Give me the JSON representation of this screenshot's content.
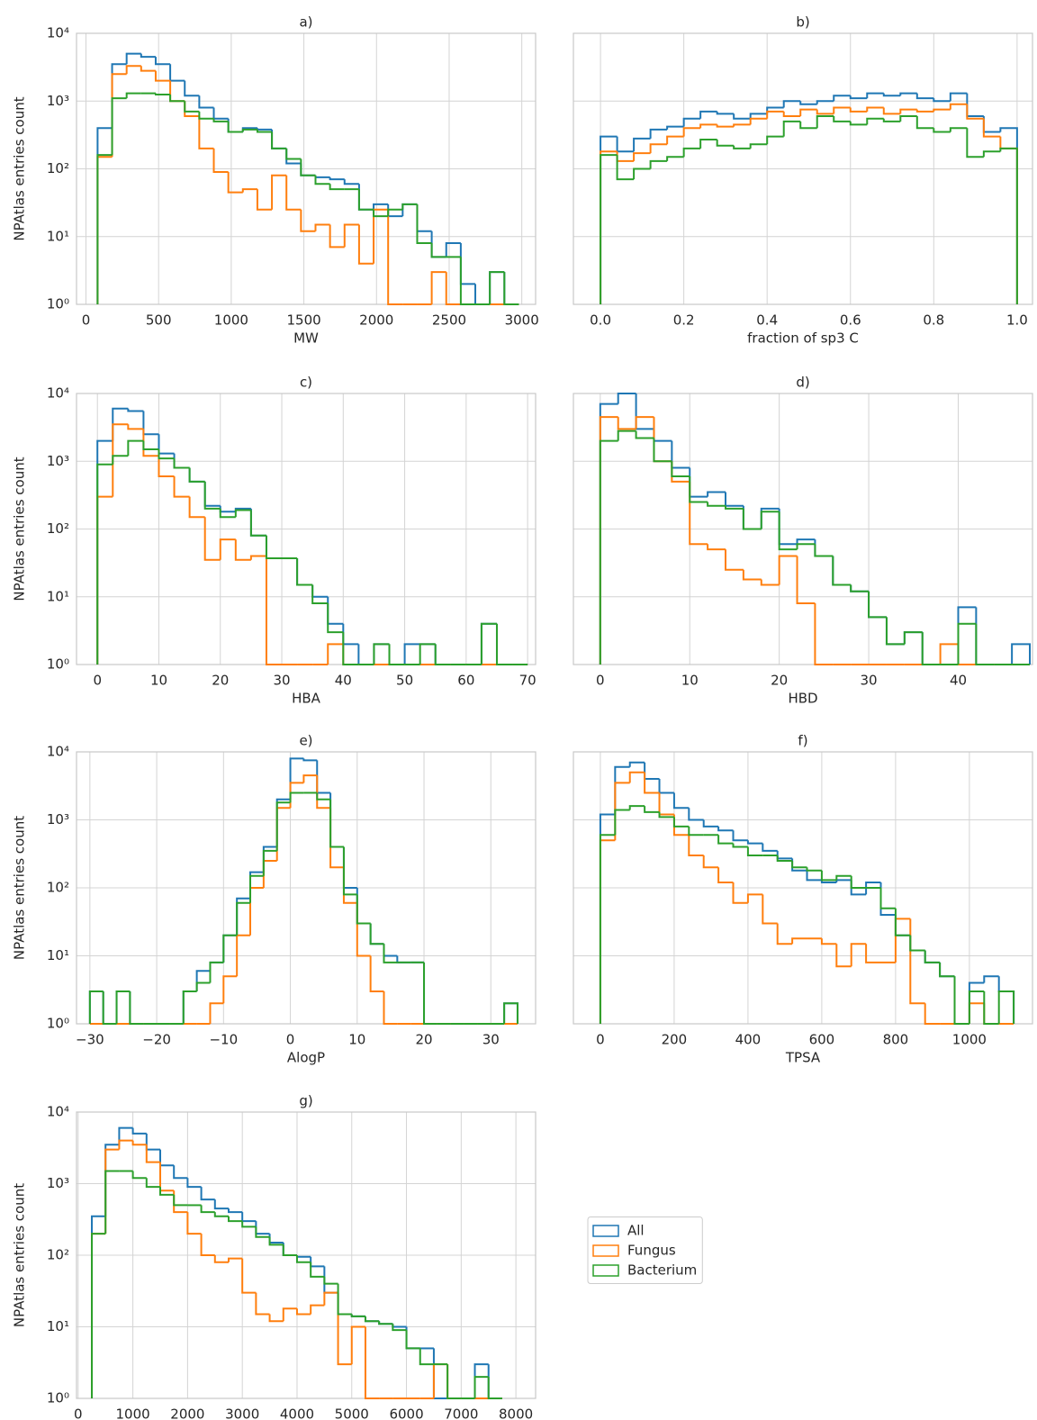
{
  "chart_data": [
    {
      "type": "histogram",
      "title": "a)",
      "xlabel": "MW",
      "ylabel": "NPAtlas entries count",
      "log_y": true,
      "grid": true,
      "xlim": [
        -65,
        3095
      ],
      "xticks": [
        0,
        500,
        1000,
        1500,
        2000,
        2500,
        3000
      ],
      "ylim": [
        1,
        10000
      ],
      "yticks": [
        {
          "value": 1,
          "label": "10⁰"
        },
        {
          "value": 10,
          "label": "10¹"
        },
        {
          "value": 100,
          "label": "10²"
        },
        {
          "value": 1000,
          "label": "10³"
        },
        {
          "value": 10000,
          "label": "10⁴"
        }
      ],
      "bins": [
        80,
        180,
        280,
        380,
        480,
        580,
        680,
        780,
        880,
        980,
        1080,
        1180,
        1280,
        1380,
        1480,
        1580,
        1680,
        1780,
        1880,
        1980,
        2080,
        2180,
        2280,
        2380,
        2480,
        2580,
        2680,
        2780,
        2880,
        2980
      ],
      "series": [
        {
          "color": "#1f77b4",
          "values": [
            400,
            3500,
            5000,
            4500,
            3500,
            2000,
            1200,
            800,
            550,
            350,
            400,
            380,
            200,
            120,
            80,
            75,
            70,
            60,
            25,
            30,
            20,
            30,
            12,
            5,
            8,
            2,
            0,
            3,
            0
          ]
        },
        {
          "color": "#ff7f0e",
          "values": [
            150,
            2500,
            3300,
            2800,
            2000,
            1000,
            600,
            200,
            90,
            45,
            50,
            25,
            80,
            25,
            12,
            15,
            7,
            15,
            4,
            25,
            1,
            0,
            0,
            3,
            1,
            0,
            0,
            0,
            0
          ]
        },
        {
          "color": "#2ca02c",
          "values": [
            160,
            1100,
            1300,
            1300,
            1250,
            1000,
            700,
            550,
            500,
            350,
            380,
            350,
            200,
            140,
            80,
            60,
            50,
            50,
            25,
            20,
            25,
            30,
            8,
            5,
            5,
            1,
            0,
            3,
            0
          ]
        }
      ]
    },
    {
      "type": "histogram",
      "title": "b)",
      "xlabel": "fraction of sp3 C",
      "log_y": true,
      "grid": true,
      "xlim": [
        -0.065,
        1.037
      ],
      "xticks": [
        {
          "value": 0,
          "label": "0.0"
        },
        0.2,
        0.4,
        0.6,
        0.8,
        {
          "value": 1,
          "label": "1.0"
        }
      ],
      "ylim": [
        1,
        10000
      ],
      "yticks": [
        1,
        10,
        100,
        1000,
        10000
      ],
      "bins": [
        0,
        0.04,
        0.08,
        0.12,
        0.16,
        0.2,
        0.24,
        0.28,
        0.32,
        0.36,
        0.4,
        0.44,
        0.48,
        0.52,
        0.56,
        0.6,
        0.64,
        0.68,
        0.72,
        0.76,
        0.8,
        0.84,
        0.88,
        0.92,
        0.96,
        1
      ],
      "series": [
        {
          "color": "#1f77b4",
          "values": [
            300,
            180,
            280,
            380,
            420,
            550,
            700,
            650,
            550,
            650,
            800,
            1000,
            900,
            1000,
            1200,
            1100,
            1300,
            1200,
            1300,
            1100,
            1000,
            1300,
            600,
            350,
            400
          ]
        },
        {
          "color": "#ff7f0e",
          "values": [
            180,
            130,
            170,
            230,
            300,
            400,
            450,
            420,
            450,
            550,
            700,
            600,
            750,
            650,
            800,
            700,
            800,
            650,
            750,
            700,
            750,
            900,
            550,
            300,
            200
          ]
        },
        {
          "color": "#2ca02c",
          "values": [
            160,
            70,
            100,
            130,
            150,
            200,
            270,
            220,
            200,
            230,
            300,
            500,
            400,
            600,
            500,
            450,
            550,
            500,
            600,
            400,
            350,
            400,
            150,
            180,
            200
          ]
        }
      ]
    },
    {
      "type": "histogram",
      "title": "c)",
      "xlabel": "HBA",
      "ylabel": "NPAtlas entries count",
      "log_y": true,
      "grid": true,
      "xlim": [
        -3.4,
        71.3
      ],
      "xticks": [
        0,
        10,
        20,
        30,
        40,
        50,
        60,
        70
      ],
      "ylim": [
        1,
        10000
      ],
      "yticks": [
        {
          "value": 1,
          "label": "10⁰"
        },
        {
          "value": 10,
          "label": "10¹"
        },
        {
          "value": 100,
          "label": "10²"
        },
        {
          "value": 1000,
          "label": "10³"
        },
        {
          "value": 10000,
          "label": "10⁴"
        }
      ],
      "bins": [
        0,
        2.5,
        5,
        7.5,
        10,
        12.5,
        15,
        17.5,
        20,
        22.5,
        25,
        27.5,
        30,
        32.5,
        35,
        37.5,
        40,
        42.5,
        45,
        47.5,
        50,
        52.5,
        55,
        57.5,
        60,
        62.5,
        65,
        67.5,
        70
      ],
      "series": [
        {
          "color": "#1f77b4",
          "values": [
            2000,
            6000,
            5500,
            2500,
            1300,
            800,
            500,
            220,
            180,
            200,
            80,
            37,
            37,
            15,
            10,
            4,
            2,
            0,
            2,
            0,
            2,
            2,
            0,
            0,
            0,
            4,
            0,
            0
          ]
        },
        {
          "color": "#ff7f0e",
          "values": [
            300,
            3500,
            3000,
            1200,
            600,
            300,
            150,
            35,
            70,
            35,
            40,
            0,
            0,
            0,
            0,
            2,
            0,
            0,
            0,
            0,
            0,
            0,
            0,
            0,
            0,
            0,
            0,
            0
          ]
        },
        {
          "color": "#2ca02c",
          "values": [
            900,
            1200,
            2000,
            1500,
            1100,
            800,
            500,
            200,
            150,
            190,
            80,
            37,
            37,
            15,
            8,
            3,
            1,
            0,
            2,
            0,
            0,
            2,
            0,
            0,
            0,
            4,
            0,
            0
          ]
        }
      ]
    },
    {
      "type": "histogram",
      "title": "d)",
      "xlabel": "HBD",
      "log_y": true,
      "grid": true,
      "xlim": [
        -3,
        48.3
      ],
      "xticks": [
        0,
        10,
        20,
        30,
        40
      ],
      "ylim": [
        1,
        10000
      ],
      "yticks": [
        1,
        10,
        100,
        1000,
        10000
      ],
      "bins": [
        0,
        2,
        4,
        6,
        8,
        10,
        12,
        14,
        16,
        18,
        20,
        22,
        24,
        26,
        28,
        30,
        32,
        34,
        36,
        38,
        40,
        42,
        44,
        46,
        48
      ],
      "series": [
        {
          "color": "#1f77b4",
          "values": [
            7000,
            10000,
            3000,
            2000,
            800,
            300,
            350,
            220,
            100,
            200,
            60,
            70,
            40,
            15,
            12,
            5,
            2,
            3,
            1,
            1,
            7,
            0,
            0,
            2
          ]
        },
        {
          "color": "#ff7f0e",
          "values": [
            4500,
            3000,
            4500,
            1000,
            500,
            60,
            50,
            25,
            18,
            15,
            40,
            8,
            1,
            0,
            0,
            0,
            0,
            0,
            0,
            2,
            1,
            0,
            0,
            0
          ]
        },
        {
          "color": "#2ca02c",
          "values": [
            2000,
            2800,
            2200,
            1000,
            600,
            250,
            220,
            200,
            100,
            180,
            50,
            60,
            40,
            15,
            12,
            5,
            2,
            3,
            1,
            1,
            4,
            0,
            0,
            0
          ]
        }
      ]
    },
    {
      "type": "histogram",
      "title": "e)",
      "xlabel": "AlogP",
      "ylabel": "NPAtlas entries count",
      "log_y": true,
      "grid": true,
      "xlim": [
        -32,
        36.7
      ],
      "xticks": [
        {
          "value": -30,
          "label": "−30"
        },
        {
          "value": -20,
          "label": "−20"
        },
        {
          "value": -10,
          "label": "−10"
        },
        0,
        10,
        20,
        30
      ],
      "ylim": [
        1,
        10000
      ],
      "yticks": [
        {
          "value": 1,
          "label": "10⁰"
        },
        {
          "value": 10,
          "label": "10¹"
        },
        {
          "value": 100,
          "label": "10²"
        },
        {
          "value": 1000,
          "label": "10³"
        },
        {
          "value": 10000,
          "label": "10⁴"
        }
      ],
      "bins": [
        -30,
        -28,
        -26,
        -24,
        -22,
        -20,
        -18,
        -16,
        -14,
        -12,
        -10,
        -8,
        -6,
        -4,
        -2,
        0,
        2,
        4,
        6,
        8,
        10,
        12,
        14,
        16,
        18,
        20,
        22,
        24,
        26,
        28,
        30,
        32,
        34
      ],
      "series": [
        {
          "color": "#1f77b4",
          "values": [
            3,
            0,
            3,
            0,
            0,
            0,
            0,
            3,
            6,
            8,
            20,
            70,
            170,
            400,
            2000,
            8000,
            7500,
            2500,
            400,
            100,
            30,
            15,
            10,
            8,
            8,
            0,
            0,
            0,
            0,
            0,
            0,
            2
          ]
        },
        {
          "color": "#ff7f0e",
          "values": [
            0,
            0,
            0,
            0,
            0,
            0,
            0,
            1,
            1,
            2,
            5,
            20,
            100,
            250,
            1500,
            3500,
            4500,
            1500,
            200,
            60,
            10,
            3,
            1,
            0,
            0,
            0,
            0,
            0,
            0,
            0,
            0,
            0
          ]
        },
        {
          "color": "#2ca02c",
          "values": [
            3,
            0,
            3,
            0,
            0,
            0,
            0,
            3,
            4,
            8,
            20,
            60,
            150,
            350,
            1800,
            2500,
            2500,
            2000,
            400,
            80,
            30,
            15,
            8,
            8,
            8,
            0,
            0,
            0,
            0,
            0,
            0,
            2
          ]
        }
      ]
    },
    {
      "type": "histogram",
      "title": "f)",
      "xlabel": "TPSA",
      "log_y": true,
      "grid": true,
      "xlim": [
        -73,
        1171
      ],
      "xticks": [
        0,
        200,
        400,
        600,
        800,
        1000
      ],
      "ylim": [
        1,
        10000
      ],
      "yticks": [
        1,
        10,
        100,
        1000,
        10000
      ],
      "bins": [
        0,
        40,
        80,
        120,
        160,
        200,
        240,
        280,
        320,
        360,
        400,
        440,
        480,
        520,
        560,
        600,
        640,
        680,
        720,
        760,
        800,
        840,
        880,
        920,
        960,
        1000,
        1040,
        1080,
        1120
      ],
      "series": [
        {
          "color": "#1f77b4",
          "values": [
            1200,
            6000,
            7000,
            4000,
            2500,
            1500,
            1000,
            800,
            700,
            500,
            450,
            350,
            270,
            180,
            130,
            120,
            130,
            80,
            120,
            40,
            20,
            12,
            8,
            5,
            0,
            4,
            5,
            3
          ]
        },
        {
          "color": "#ff7f0e",
          "values": [
            500,
            3500,
            5000,
            2500,
            1200,
            600,
            300,
            200,
            120,
            60,
            80,
            30,
            15,
            18,
            18,
            15,
            7,
            15,
            8,
            8,
            35,
            2,
            0,
            0,
            0,
            2,
            0,
            0
          ]
        },
        {
          "color": "#2ca02c",
          "values": [
            600,
            1400,
            1600,
            1300,
            1100,
            800,
            600,
            600,
            450,
            400,
            300,
            300,
            250,
            200,
            180,
            130,
            150,
            100,
            100,
            50,
            20,
            12,
            8,
            5,
            0,
            3,
            0,
            3
          ]
        }
      ]
    },
    {
      "type": "histogram",
      "title": "g)",
      "ylabel": "NPAtlas entries count",
      "log_y": true,
      "grid": true,
      "xlim": [
        -30,
        8360
      ],
      "xticks": [
        0,
        1000,
        2000,
        3000,
        4000,
        5000,
        6000,
        7000,
        8000
      ],
      "ylim": [
        1,
        10000
      ],
      "yticks": [
        {
          "value": 1,
          "label": "10⁰"
        },
        {
          "value": 10,
          "label": "10¹"
        },
        {
          "value": 100,
          "label": "10²"
        },
        {
          "value": 1000,
          "label": "10³"
        },
        {
          "value": 10000,
          "label": "10⁴"
        }
      ],
      "bins": [
        250,
        500,
        750,
        1000,
        1250,
        1500,
        1750,
        2000,
        2250,
        2500,
        2750,
        3000,
        3250,
        3500,
        3750,
        4000,
        4250,
        4500,
        4750,
        5000,
        5250,
        5500,
        5750,
        6000,
        6250,
        6500,
        6750,
        7000,
        7250,
        7500,
        7750
      ],
      "series": [
        {
          "name": "All",
          "color": "#1f77b4",
          "values": [
            350,
            3500,
            6000,
            5000,
            3000,
            1800,
            1200,
            900,
            600,
            450,
            400,
            300,
            200,
            150,
            100,
            95,
            70,
            30,
            15,
            14,
            12,
            11,
            10,
            5,
            5,
            0,
            0,
            0,
            3,
            0
          ]
        },
        {
          "name": "Fungus",
          "color": "#ff7f0e",
          "values": [
            200,
            3000,
            4000,
            3500,
            2000,
            800,
            400,
            200,
            100,
            80,
            90,
            30,
            15,
            12,
            18,
            15,
            20,
            30,
            3,
            10,
            0,
            0,
            0,
            0,
            0,
            3,
            0,
            0,
            0,
            0
          ]
        },
        {
          "name": "Bacterium",
          "color": "#2ca02c",
          "values": [
            200,
            1500,
            1500,
            1200,
            900,
            700,
            500,
            500,
            400,
            350,
            300,
            250,
            180,
            140,
            100,
            80,
            50,
            40,
            15,
            14,
            12,
            11,
            9,
            5,
            3,
            3,
            0,
            0,
            2,
            0
          ]
        }
      ]
    }
  ]
}
